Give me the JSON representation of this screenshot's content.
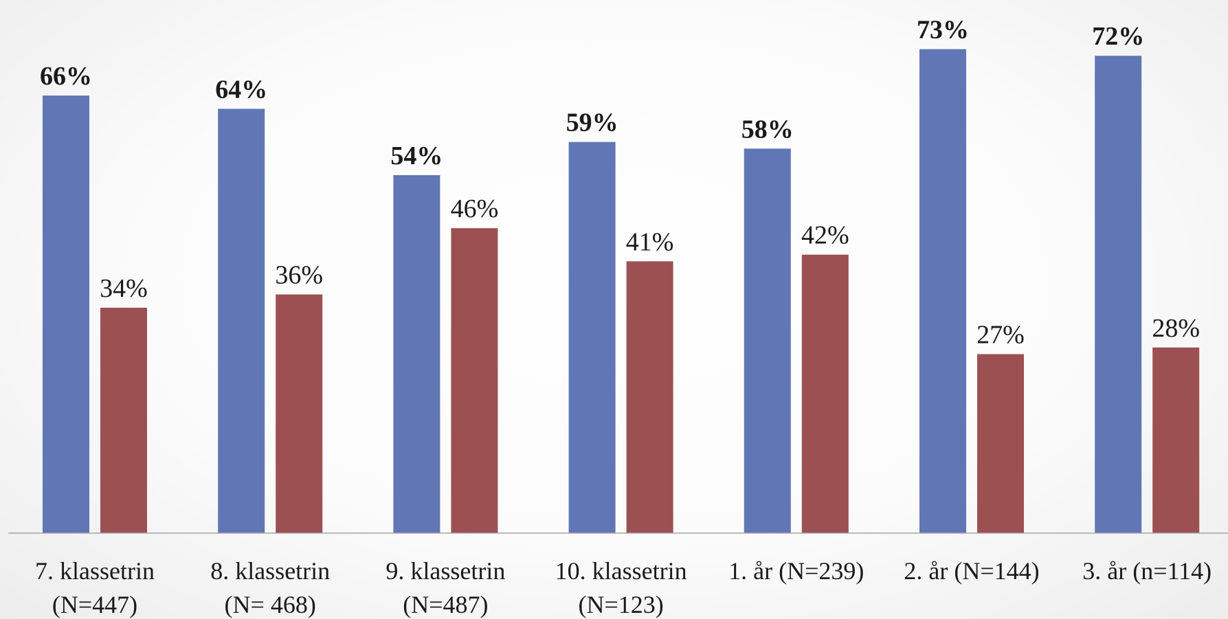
{
  "chart_data": {
    "type": "bar",
    "categories": [
      [
        "7. klassetrin",
        "(N=447)"
      ],
      [
        "8. klassetrin",
        "(N= 468)"
      ],
      [
        "9. klassetrin",
        "(N=487)"
      ],
      [
        "10. klassetrin",
        "(N=123)"
      ],
      [
        "1. år (N=239)"
      ],
      [
        "2. år (N=144)"
      ],
      [
        "3. år (n=114)"
      ]
    ],
    "series": [
      {
        "values": [
          66,
          64,
          54,
          59,
          58,
          73,
          72
        ],
        "labels": [
          "66%",
          "64%",
          "54%",
          "59%",
          "58%",
          "73%",
          "72%"
        ],
        "color": "#6176b5",
        "label_style": "bold"
      },
      {
        "values": [
          34,
          36,
          46,
          41,
          42,
          27,
          28
        ],
        "labels": [
          "34%",
          "36%",
          "46%",
          "41%",
          "42%",
          "27%",
          "28%"
        ],
        "color": "#9c5052",
        "label_style": "normal"
      }
    ],
    "ylim": [
      0,
      80
    ],
    "grid": false,
    "axis_color": "#a6a6a6"
  }
}
